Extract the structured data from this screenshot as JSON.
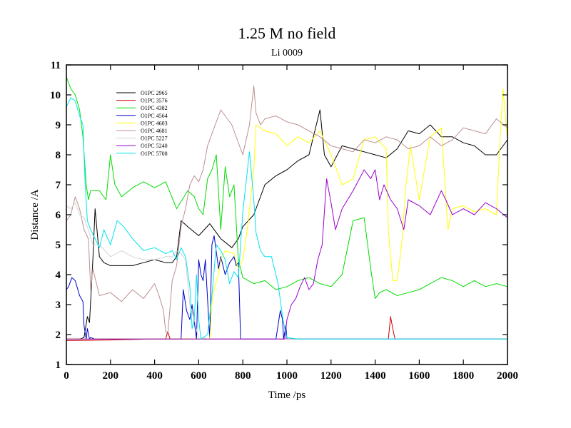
{
  "chart_data": {
    "type": "line",
    "title": "1.25 M no field",
    "subtitle": "Li 0009",
    "xlabel": "Time /ps",
    "ylabel": "Distance /A",
    "xlim": [
      0,
      2000
    ],
    "ylim": [
      1,
      11
    ],
    "xticks": [
      0,
      200,
      400,
      600,
      800,
      1000,
      1200,
      1400,
      1600,
      1800,
      2000
    ],
    "yticks": [
      1,
      2,
      3,
      4,
      5,
      6,
      7,
      8,
      9,
      10,
      11
    ],
    "grid": false,
    "legend_position": "top-left",
    "series": [
      {
        "name": "O1PC 2965",
        "color": "#000000",
        "x": [
          0,
          60,
          80,
          95,
          105,
          120,
          130,
          150,
          170,
          200,
          250,
          300,
          350,
          400,
          450,
          480,
          500,
          520,
          550,
          600,
          650,
          700,
          750,
          780,
          800,
          850,
          900,
          950,
          1000,
          1050,
          1100,
          1150,
          1170,
          1200,
          1250,
          1300,
          1350,
          1400,
          1450,
          1500,
          1550,
          1600,
          1650,
          1700,
          1750,
          1800,
          1850,
          1900,
          1950,
          2000
        ],
        "y": [
          1.85,
          1.85,
          1.9,
          2.6,
          2.4,
          4.5,
          6.2,
          4.6,
          4.4,
          4.3,
          4.3,
          4.3,
          4.4,
          4.5,
          4.4,
          4.4,
          4.6,
          5.8,
          5.6,
          5.3,
          5.7,
          5.2,
          4.9,
          5.2,
          5.6,
          6.0,
          7.0,
          7.3,
          7.5,
          7.8,
          8.0,
          9.5,
          8.0,
          7.6,
          8.3,
          8.2,
          8.1,
          8.0,
          7.9,
          8.2,
          8.8,
          8.7,
          9.0,
          8.6,
          8.6,
          8.4,
          8.3,
          8.0,
          8.0,
          8.5
        ]
      },
      {
        "name": "O1PC 3576",
        "color": "#cc0000",
        "x": [
          0,
          200,
          400,
          450,
          460,
          470,
          500,
          800,
          1000,
          1400,
          1460,
          1470,
          1480,
          1490,
          1500,
          1600,
          1800,
          2000
        ],
        "y": [
          1.8,
          1.82,
          1.85,
          1.85,
          2.1,
          1.85,
          1.85,
          1.85,
          1.85,
          1.85,
          1.85,
          2.6,
          2.2,
          1.85,
          1.85,
          1.85,
          1.85,
          1.85
        ]
      },
      {
        "name": "O1PC 4382",
        "color": "#00dd00",
        "x": [
          0,
          20,
          40,
          60,
          75,
          90,
          100,
          110,
          130,
          150,
          180,
          200,
          220,
          250,
          300,
          350,
          400,
          450,
          500,
          550,
          580,
          600,
          620,
          640,
          660,
          680,
          700,
          720,
          740,
          760,
          780,
          800,
          850,
          900,
          950,
          1000,
          1050,
          1100,
          1150,
          1200,
          1250,
          1300,
          1350,
          1380,
          1400,
          1420,
          1450,
          1500,
          1550,
          1600,
          1650,
          1700,
          1750,
          1800,
          1850,
          1900,
          1950,
          2000
        ],
        "y": [
          10.6,
          10.2,
          10.0,
          9.5,
          8.6,
          7.0,
          6.5,
          6.8,
          6.8,
          6.8,
          6.5,
          8.0,
          7.0,
          6.6,
          6.9,
          7.1,
          6.9,
          7.1,
          6.2,
          6.8,
          6.6,
          6.2,
          6.0,
          7.2,
          7.5,
          8.0,
          5.5,
          7.6,
          6.6,
          7.0,
          4.5,
          3.9,
          3.7,
          3.8,
          3.5,
          3.6,
          3.8,
          3.9,
          3.7,
          3.6,
          4.0,
          5.8,
          5.9,
          4.2,
          3.2,
          3.4,
          3.5,
          3.3,
          3.4,
          3.5,
          3.7,
          3.9,
          3.8,
          3.6,
          3.8,
          3.6,
          3.7,
          3.6
        ]
      },
      {
        "name": "O1PC 4564",
        "color": "#0000cc",
        "x": [
          0,
          10,
          25,
          40,
          60,
          75,
          80,
          90,
          95,
          105,
          110,
          130,
          200,
          400,
          520,
          530,
          545,
          560,
          570,
          590,
          600,
          610,
          620,
          630,
          650,
          660,
          670,
          690,
          700,
          720,
          740,
          760,
          770,
          780,
          790,
          800,
          950,
          970,
          980,
          985,
          995,
          1000,
          1100,
          1400,
          1600,
          1800,
          2000
        ],
        "y": [
          3.5,
          3.6,
          3.9,
          3.8,
          3.3,
          3.1,
          2.3,
          1.85,
          2.2,
          1.85,
          1.9,
          1.85,
          1.85,
          1.85,
          1.85,
          3.5,
          2.8,
          2.5,
          3.0,
          1.85,
          4.5,
          4.0,
          3.8,
          4.5,
          1.85,
          5.0,
          5.3,
          4.2,
          4.6,
          4.0,
          4.4,
          4.6,
          4.3,
          4.4,
          1.85,
          1.85,
          1.85,
          2.8,
          2.5,
          1.85,
          2.3,
          1.85,
          1.85,
          1.85,
          1.85,
          1.85,
          1.85
        ]
      },
      {
        "name": "O1PC 4603",
        "color": "#ffff00",
        "x": [
          0,
          200,
          400,
          600,
          650,
          660,
          670,
          680,
          690,
          700,
          720,
          760,
          780,
          800,
          820,
          850,
          860,
          900,
          950,
          1000,
          1050,
          1100,
          1150,
          1200,
          1250,
          1300,
          1350,
          1400,
          1450,
          1460,
          1480,
          1500,
          1520,
          1540,
          1560,
          1600,
          1650,
          1700,
          1730,
          1750,
          1800,
          1850,
          1900,
          1950,
          1970,
          1980,
          2000
        ],
        "y": [
          1.85,
          1.85,
          1.85,
          1.85,
          1.85,
          3.0,
          3.5,
          3.8,
          4.0,
          4.5,
          4.8,
          4.7,
          4.2,
          4.5,
          5.5,
          7.5,
          9.0,
          8.8,
          8.7,
          8.3,
          8.6,
          8.4,
          8.8,
          8.0,
          7.0,
          7.2,
          8.5,
          8.6,
          8.2,
          5.5,
          3.8,
          3.8,
          5.0,
          7.0,
          8.3,
          6.5,
          8.6,
          8.9,
          5.5,
          6.2,
          6.3,
          6.1,
          6.2,
          6.0,
          9.0,
          10.2,
          8.5
        ]
      },
      {
        "name": "O1PC 4681",
        "color": "#bc8f8f",
        "x": [
          0,
          20,
          40,
          60,
          80,
          100,
          110,
          120,
          150,
          200,
          250,
          300,
          350,
          400,
          420,
          440,
          450,
          460,
          480,
          500,
          520,
          540,
          560,
          580,
          600,
          620,
          640,
          660,
          700,
          750,
          800,
          830,
          850,
          860,
          880,
          900,
          950,
          1000,
          1050,
          1100,
          1150,
          1200,
          1250,
          1300,
          1350,
          1400,
          1450,
          1500,
          1550,
          1600,
          1650,
          1700,
          1750,
          1800,
          1850,
          1900,
          1950,
          2000
        ],
        "y": [
          5.8,
          6.0,
          6.6,
          6.2,
          5.5,
          5.2,
          3.5,
          4.2,
          3.3,
          3.4,
          3.1,
          3.5,
          3.2,
          3.7,
          3.3,
          2.8,
          2.1,
          2.0,
          3.8,
          4.3,
          5.6,
          6.2,
          7.0,
          7.3,
          7.1,
          7.5,
          8.3,
          8.7,
          9.5,
          9.0,
          8.0,
          9.0,
          10.3,
          9.4,
          9.0,
          9.2,
          9.3,
          9.1,
          9.0,
          8.8,
          8.6,
          8.3,
          8.2,
          8.1,
          8.5,
          8.4,
          8.6,
          8.5,
          8.2,
          8.3,
          8.6,
          8.3,
          8.5,
          8.9,
          8.8,
          8.7,
          9.2,
          8.9
        ]
      },
      {
        "name": "O1PC 5227",
        "color": "#d3d3d3",
        "x": [
          0,
          20,
          40,
          60,
          80,
          100,
          120,
          150,
          200,
          250,
          300,
          350,
          400,
          450,
          480,
          500,
          520,
          540,
          560,
          580,
          600,
          620,
          640,
          660,
          700,
          800,
          900,
          1000,
          1200,
          1400,
          1600,
          1800,
          2000
        ],
        "y": [
          6.3,
          6.2,
          6.4,
          6.0,
          5.9,
          5.5,
          5.0,
          5.0,
          4.6,
          4.8,
          4.6,
          4.5,
          4.5,
          4.6,
          4.6,
          4.8,
          4.7,
          4.5,
          3.0,
          2.5,
          1.85,
          1.9,
          1.85,
          1.85,
          1.85,
          1.85,
          1.85,
          1.85,
          1.85,
          1.85,
          1.85,
          1.85,
          1.85
        ]
      },
      {
        "name": "O1PC 5240",
        "color": "#9900cc",
        "x": [
          0,
          200,
          400,
          600,
          800,
          900,
          990,
          1000,
          1020,
          1040,
          1060,
          1080,
          1100,
          1120,
          1140,
          1160,
          1180,
          1200,
          1220,
          1250,
          1300,
          1350,
          1380,
          1400,
          1420,
          1440,
          1470,
          1500,
          1530,
          1550,
          1600,
          1650,
          1700,
          1720,
          1750,
          1800,
          1850,
          1900,
          1950,
          2000
        ],
        "y": [
          1.85,
          1.85,
          1.85,
          1.85,
          1.85,
          1.85,
          1.85,
          2.5,
          3.0,
          3.2,
          3.6,
          3.9,
          3.5,
          3.7,
          4.5,
          5.0,
          7.2,
          6.4,
          5.5,
          6.2,
          6.8,
          7.5,
          7.2,
          7.5,
          6.5,
          7.0,
          6.5,
          6.2,
          5.5,
          6.5,
          6.3,
          6.0,
          6.8,
          6.5,
          6.0,
          6.2,
          6.0,
          6.4,
          6.2,
          5.9
        ]
      },
      {
        "name": "O1PC 5708",
        "color": "#00e5ee",
        "x": [
          0,
          20,
          40,
          60,
          75,
          85,
          95,
          110,
          130,
          150,
          170,
          200,
          230,
          260,
          300,
          350,
          400,
          450,
          480,
          500,
          520,
          540,
          560,
          570,
          580,
          590,
          600,
          610,
          620,
          640,
          660,
          680,
          700,
          720,
          740,
          760,
          780,
          800,
          830,
          850,
          860,
          880,
          900,
          930,
          960,
          980,
          990,
          1000,
          1050,
          1100,
          1200,
          1400,
          1600,
          1800,
          2000
        ],
        "y": [
          9.6,
          9.9,
          9.8,
          9.3,
          9.0,
          7.0,
          5.8,
          5.5,
          5.2,
          4.9,
          5.5,
          5.0,
          5.8,
          5.6,
          5.2,
          4.8,
          4.9,
          4.7,
          4.8,
          4.5,
          4.9,
          4.6,
          3.6,
          2.2,
          2.5,
          4.0,
          2.5,
          1.85,
          1.9,
          2.0,
          3.3,
          5.0,
          4.8,
          4.5,
          3.7,
          4.1,
          3.9,
          6.1,
          8.1,
          6.5,
          5.4,
          4.8,
          4.6,
          4.6,
          3.7,
          2.6,
          2.2,
          1.9,
          1.85,
          1.85,
          1.85,
          1.85,
          1.85,
          1.85,
          1.85
        ]
      }
    ]
  }
}
